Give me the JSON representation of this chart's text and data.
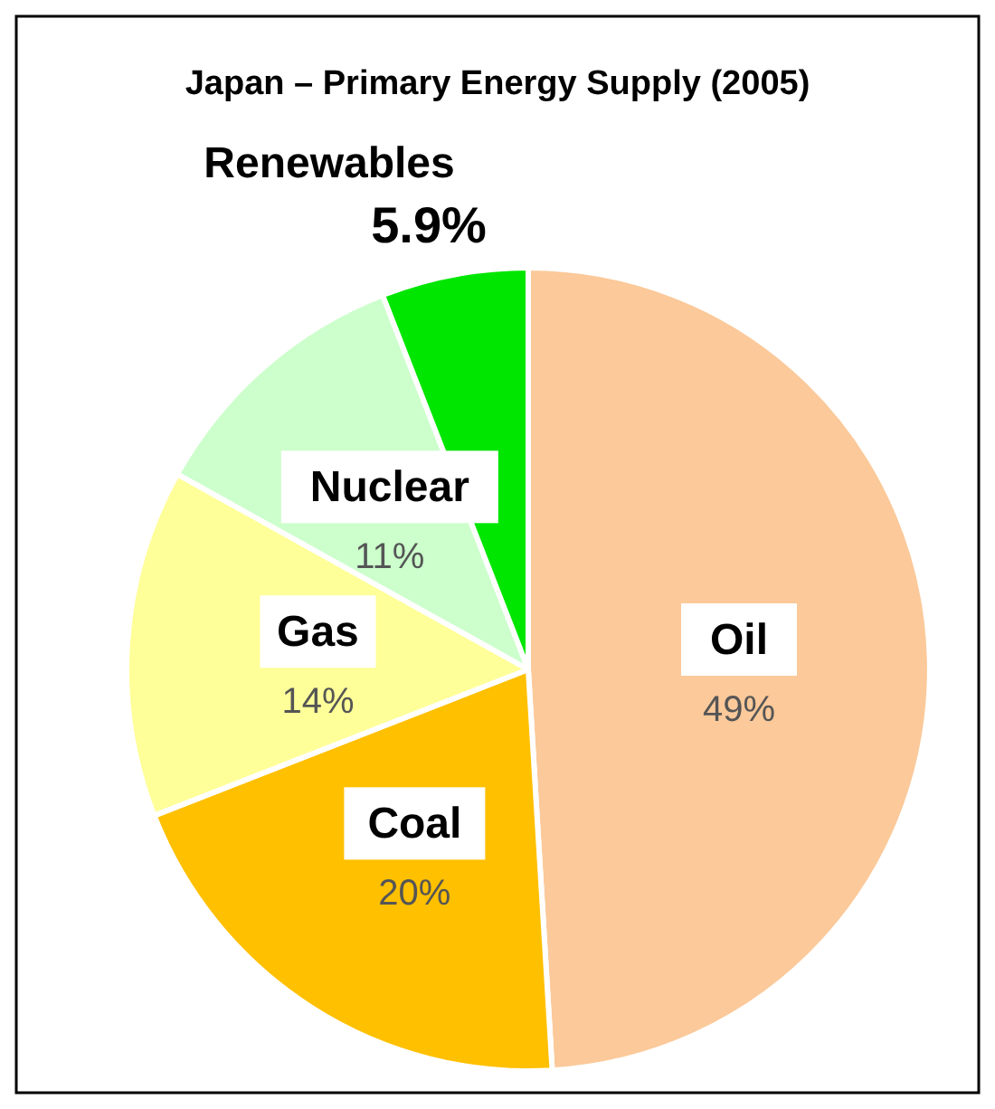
{
  "chart_data": {
    "type": "pie",
    "title": "Japan – Primary Energy Supply (2005)",
    "categories": [
      "Oil",
      "Coal",
      "Gas",
      "Nuclear",
      "Renewables"
    ],
    "values": [
      49,
      20,
      14,
      11,
      5.9
    ],
    "value_labels": [
      "49%",
      "20%",
      "14%",
      "11%",
      "5.9%"
    ],
    "colors": [
      "#fbc99a",
      "#ffc000",
      "#ffff99",
      "#ccffcc",
      "#00e600"
    ]
  }
}
